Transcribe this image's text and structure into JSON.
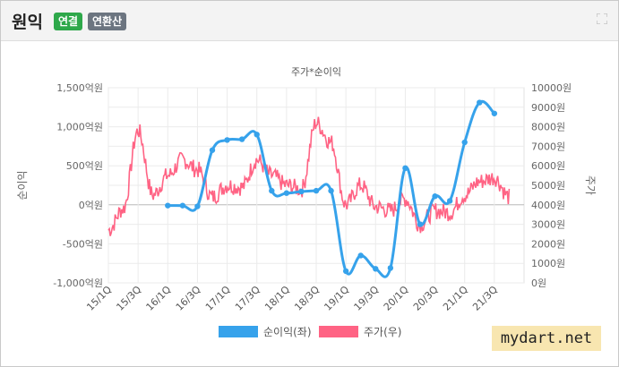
{
  "header": {
    "title": "원익",
    "badge_consolidated": "연결",
    "badge_annualized": "연환산",
    "expand_icon": "fullscreen-icon"
  },
  "watermark": "mydart.net",
  "chart_data": {
    "type": "line",
    "title": "주가*순이익",
    "x_tick_labels": [
      "15/1Q",
      "15/3Q",
      "16/1Q",
      "16/3Q",
      "17/1Q",
      "17/3Q",
      "18/1Q",
      "18/3Q",
      "19/1Q",
      "19/3Q",
      "20/1Q",
      "20/3Q",
      "21/1Q",
      "21/3Q"
    ],
    "y_left": {
      "label": "순이익",
      "min": -1000,
      "max": 1500,
      "step": 500,
      "ticks": [
        "-1,000억원",
        "-500억원",
        "0억원",
        "500억원",
        "1,000억원",
        "1,500억원"
      ]
    },
    "y_right": {
      "label": "주가",
      "min": 0,
      "max": 10000,
      "step": 1000,
      "ticks": [
        "0원",
        "1000원",
        "2000원",
        "3000원",
        "4000원",
        "5000원",
        "6000원",
        "7000원",
        "8000원",
        "9000원",
        "10000원"
      ]
    },
    "legend": {
      "position": "bottom"
    },
    "grid": true,
    "series": [
      {
        "name": "순이익(좌)",
        "axis": "left",
        "color": "#36a2eb",
        "x": [
          "16/1Q",
          "16/2Q",
          "16/3Q",
          "16/4Q",
          "17/1Q",
          "17/2Q",
          "17/3Q",
          "17/4Q",
          "18/1Q",
          "18/2Q",
          "18/3Q",
          "18/4Q",
          "19/1Q",
          "19/2Q",
          "19/3Q",
          "19/4Q",
          "20/1Q",
          "20/2Q",
          "20/3Q",
          "20/4Q",
          "21/1Q",
          "21/2Q",
          "21/3Q"
        ],
        "values": [
          -10,
          -10,
          -20,
          700,
          830,
          840,
          900,
          180,
          150,
          170,
          180,
          180,
          -850,
          -650,
          -820,
          -810,
          470,
          -250,
          110,
          50,
          800,
          1310,
          1170
        ]
      },
      {
        "name": "주가(우)",
        "axis": "right",
        "color": "#ff6384",
        "x_start": "15/1Q",
        "x_end": "21/4Q",
        "approx_quarterly_levels": [
          [
            "15/1Q",
            2700
          ],
          [
            "15/2Q",
            3800
          ],
          [
            "15/3Q",
            7800
          ],
          [
            "15/4Q",
            4500
          ],
          [
            "16/1Q",
            5500
          ],
          [
            "16/2Q",
            6300
          ],
          [
            "16/3Q",
            5800
          ],
          [
            "16/4Q",
            4400
          ],
          [
            "17/1Q",
            5000
          ],
          [
            "17/2Q",
            4900
          ],
          [
            "17/3Q",
            6300
          ],
          [
            "17/4Q",
            5500
          ],
          [
            "18/1Q",
            5000
          ],
          [
            "18/2Q",
            4800
          ],
          [
            "18/3Q",
            8200
          ],
          [
            "18/4Q",
            7200
          ],
          [
            "19/1Q",
            4000
          ],
          [
            "19/2Q",
            5000
          ],
          [
            "19/3Q",
            3900
          ],
          [
            "19/4Q",
            3700
          ],
          [
            "20/1Q",
            4300
          ],
          [
            "20/2Q",
            3000
          ],
          [
            "20/3Q",
            3700
          ],
          [
            "20/4Q",
            3600
          ],
          [
            "21/1Q",
            4500
          ],
          [
            "21/2Q",
            5200
          ],
          [
            "21/3Q",
            5400
          ],
          [
            "21/4Q",
            4400
          ]
        ]
      }
    ]
  }
}
